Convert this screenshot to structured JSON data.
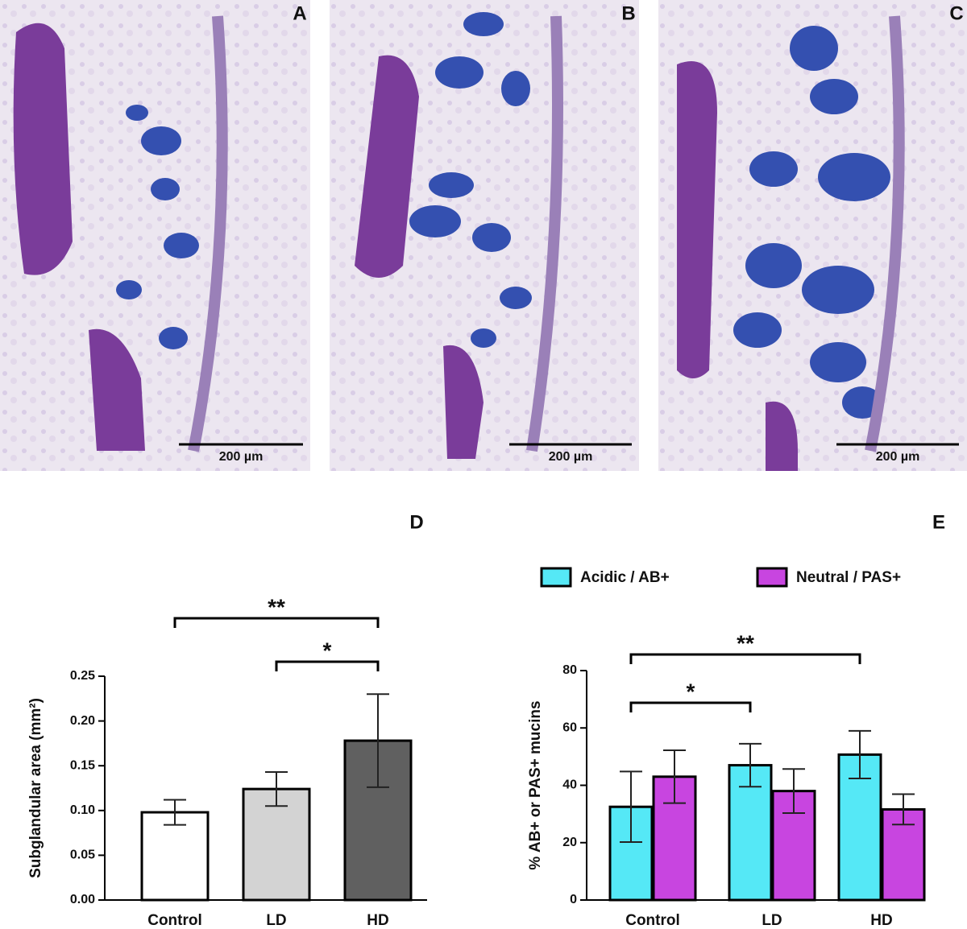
{
  "panels": [
    {
      "label": "A",
      "scale_bar": "200 µm"
    },
    {
      "label": "B",
      "scale_bar": "200 µm"
    },
    {
      "label": "C",
      "scale_bar": "200 µm"
    }
  ],
  "chart_data": [
    {
      "type": "bar",
      "panel": "D",
      "y_label": "Subglandular area (mm²)",
      "categories": [
        "Control",
        "LD",
        "HD"
      ],
      "series": [
        {
          "values": [
            0.098,
            0.124,
            0.178
          ],
          "errors": [
            0.014,
            0.019,
            0.052
          ],
          "colors": [
            "#ffffff",
            "#d3d3d3",
            "#606060"
          ]
        }
      ],
      "ylim": [
        0,
        0.25
      ],
      "yticks": [
        {
          "value": 0,
          "label": "0.00"
        },
        0.05,
        {
          "value": 0.1,
          "label": "0.10"
        },
        0.15,
        {
          "value": 0.2,
          "label": "0.20"
        },
        0.25
      ],
      "annotations": [
        {
          "text": "**",
          "between": [
            "Control",
            "HD"
          ]
        },
        {
          "text": "*",
          "between": [
            "LD",
            "HD"
          ]
        }
      ]
    },
    {
      "type": "grouped_bar",
      "panel": "E",
      "y_label": "% AB+ or PAS+ mucins",
      "categories": [
        "Control",
        "LD",
        "HD"
      ],
      "series": [
        {
          "name": "Acidic / AB+",
          "color": "#55e8f6",
          "values": [
            32.5,
            47,
            50.7
          ],
          "errors": [
            12.3,
            7.5,
            8.3
          ]
        },
        {
          "name": "Neutral / PAS+",
          "color": "#c845e0",
          "values": [
            43,
            38,
            31.6
          ],
          "errors": [
            9.2,
            7.7,
            5.3
          ]
        }
      ],
      "ylim": [
        0,
        80
      ],
      "yticks": [
        0,
        20,
        40,
        60,
        80
      ],
      "annotations": [
        {
          "text": "**",
          "between": [
            "Control",
            "HD"
          ]
        },
        {
          "text": "*",
          "between": [
            "Control",
            "LD"
          ]
        }
      ]
    }
  ]
}
